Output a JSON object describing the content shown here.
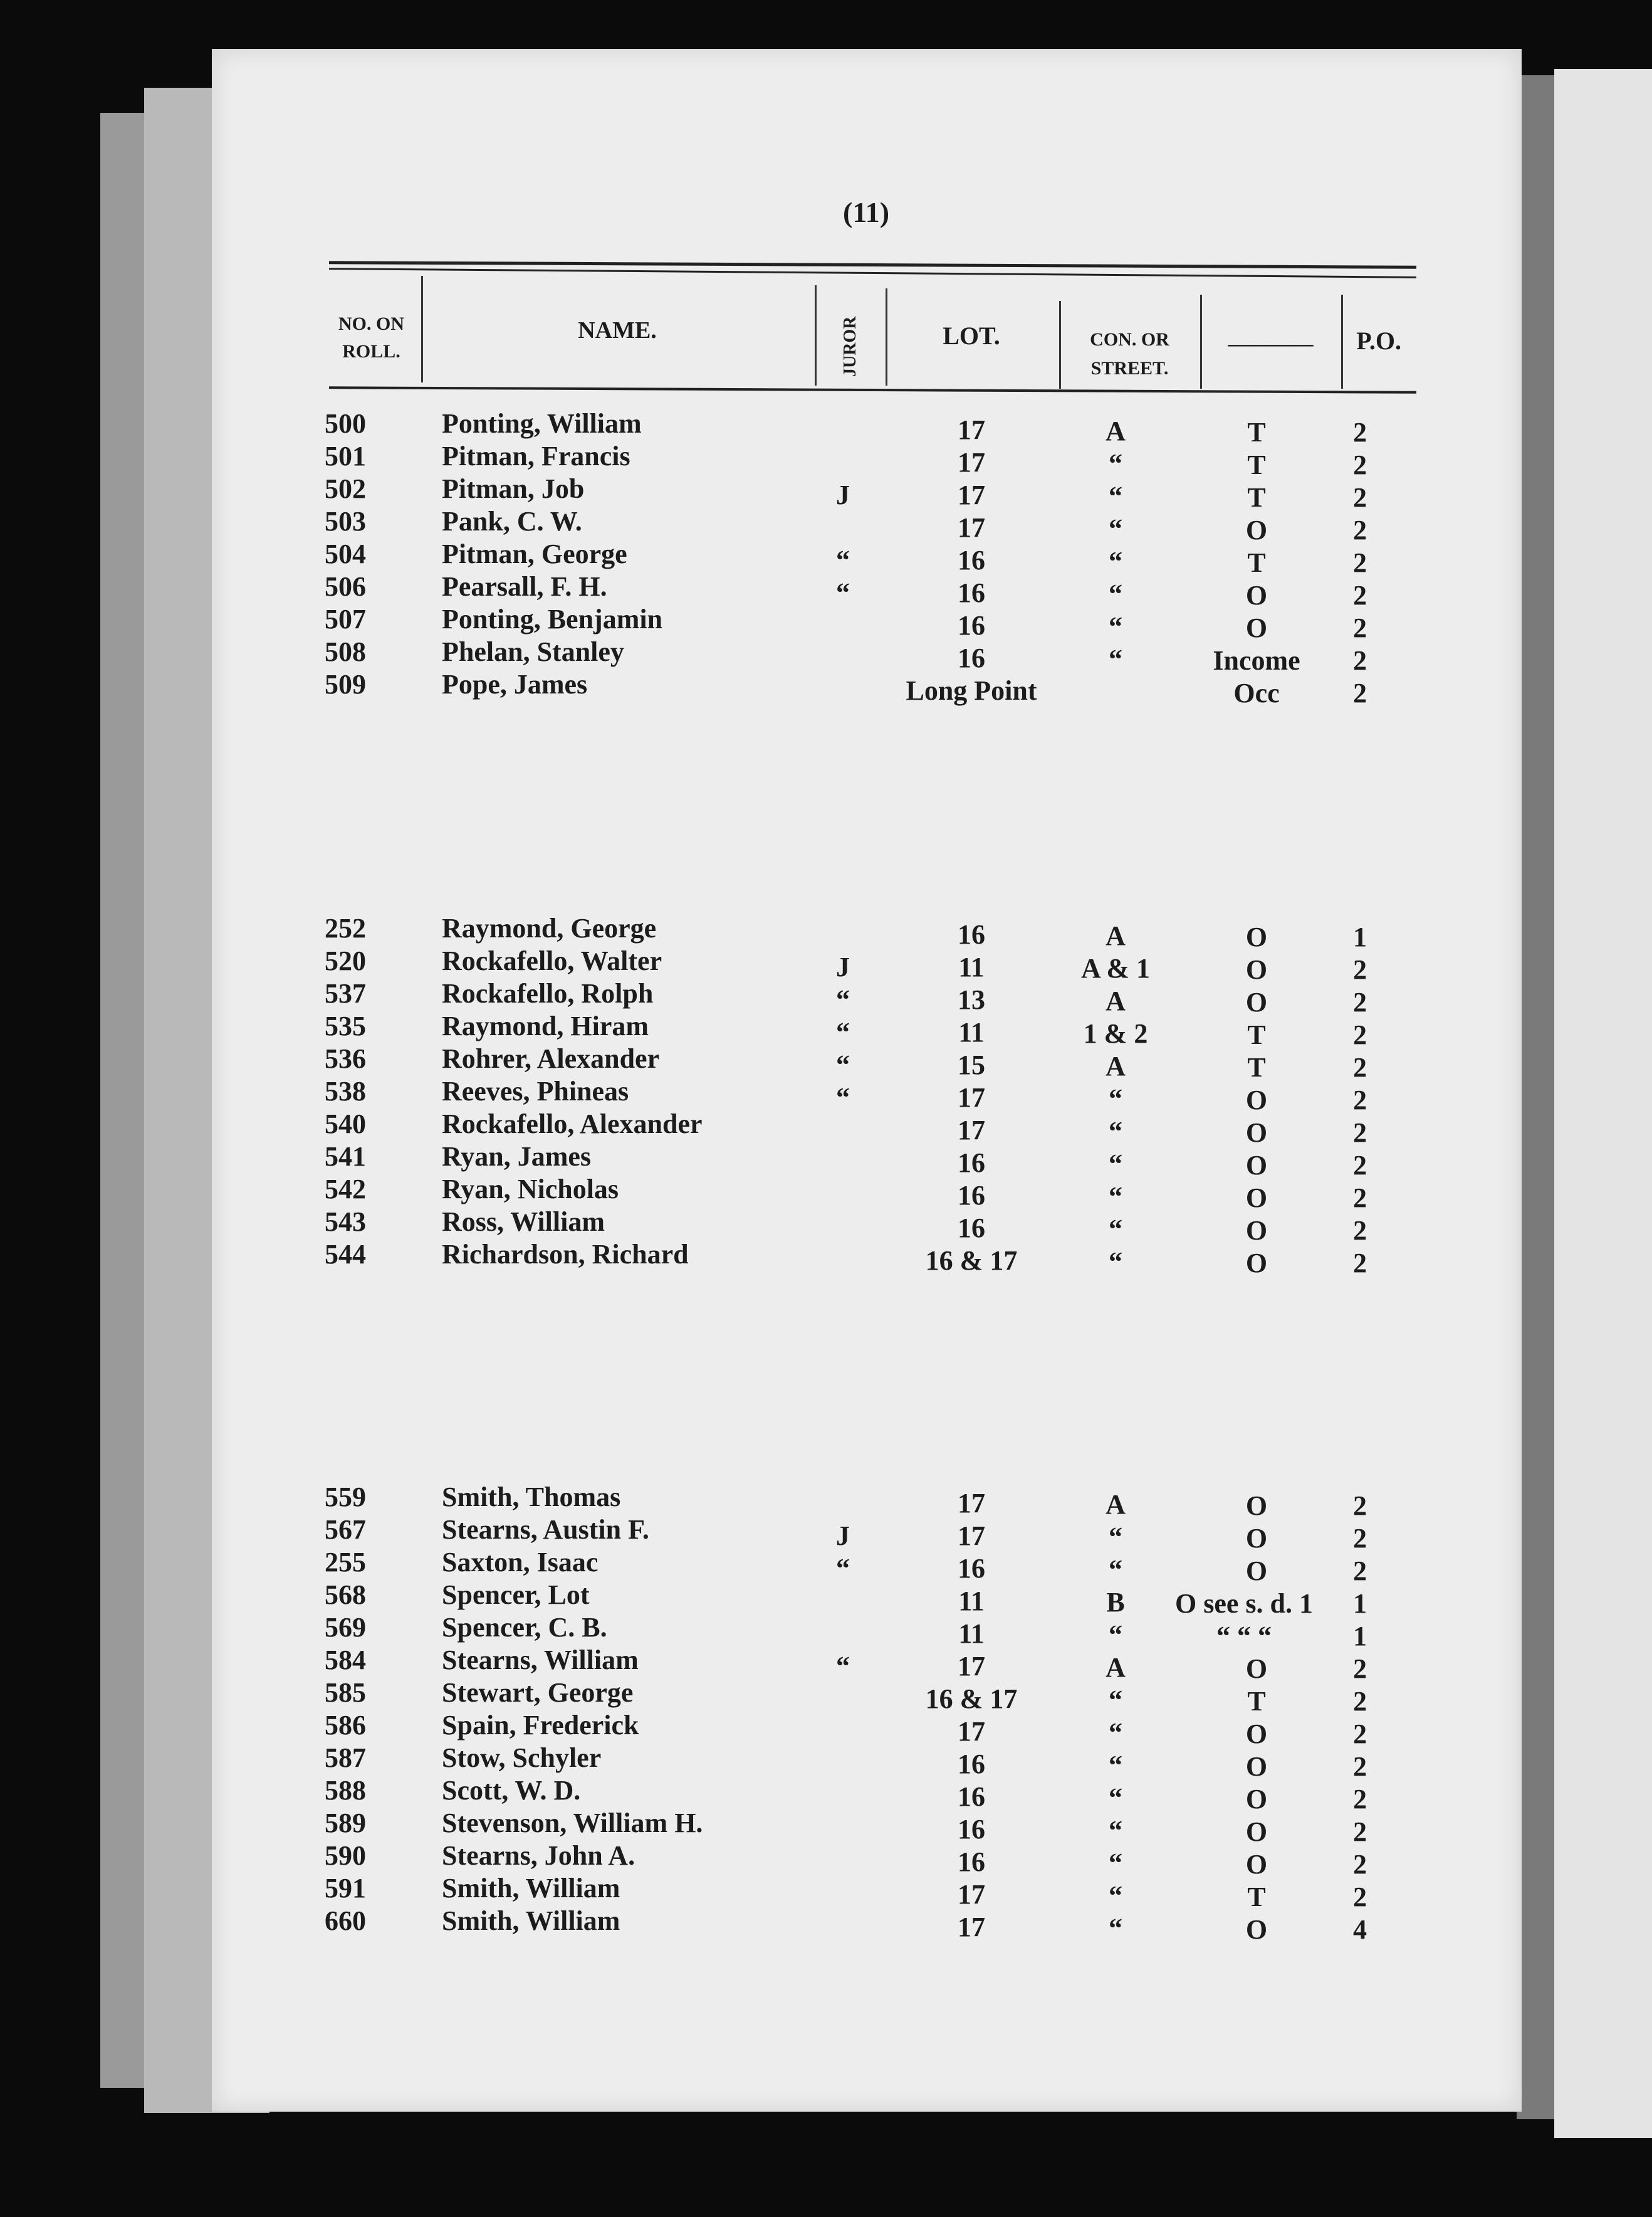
{
  "page_number": "(11)",
  "headers": {
    "no_on_roll_1": "NO. ON",
    "no_on_roll_2": "ROLL.",
    "name": "NAME.",
    "juror": "JUROR",
    "lot": "LOT.",
    "con_1": "CON. OR",
    "con_2": "STREET.",
    "blank": "————",
    "po": "P.O."
  },
  "sections": [
    {
      "rows": [
        {
          "no": "500",
          "name": "Ponting, William",
          "juror": "",
          "lot": "17",
          "con": "A",
          "col6": "T",
          "po": "2"
        },
        {
          "no": "501",
          "name": "Pitman, Francis",
          "juror": "",
          "lot": "17",
          "con": "“",
          "col6": "T",
          "po": "2"
        },
        {
          "no": "502",
          "name": "Pitman, Job",
          "juror": "J",
          "lot": "17",
          "con": "“",
          "col6": "T",
          "po": "2"
        },
        {
          "no": "503",
          "name": "Pank, C. W.",
          "juror": "",
          "lot": "17",
          "con": "“",
          "col6": "O",
          "po": "2"
        },
        {
          "no": "504",
          "name": "Pitman, George",
          "juror": "“",
          "lot": "16",
          "con": "“",
          "col6": "T",
          "po": "2"
        },
        {
          "no": "506",
          "name": "Pearsall, F. H.",
          "juror": "“",
          "lot": "16",
          "con": "“",
          "col6": "O",
          "po": "2"
        },
        {
          "no": "507",
          "name": "Ponting, Benjamin",
          "juror": "",
          "lot": "16",
          "con": "“",
          "col6": "O",
          "po": "2"
        },
        {
          "no": "508",
          "name": "Phelan, Stanley",
          "juror": "",
          "lot": "16",
          "con": "“",
          "col6": "Income",
          "po": "2"
        },
        {
          "no": "509",
          "name": "Pope, James",
          "juror": "",
          "lot": "Long Point",
          "con": "",
          "col6": "Occ",
          "po": "2"
        }
      ]
    },
    {
      "rows": [
        {
          "no": "252",
          "name": "Raymond, George",
          "juror": "",
          "lot": "16",
          "con": "A",
          "col6": "O",
          "po": "1"
        },
        {
          "no": "520",
          "name": "Rockafello, Walter",
          "juror": "J",
          "lot": "11",
          "con": "A & 1",
          "col6": "O",
          "po": "2"
        },
        {
          "no": "537",
          "name": "Rockafello, Rolph",
          "juror": "“",
          "lot": "13",
          "con": "A",
          "col6": "O",
          "po": "2"
        },
        {
          "no": "535",
          "name": "Raymond, Hiram",
          "juror": "“",
          "lot": "11",
          "con": "1 & 2",
          "col6": "T",
          "po": "2"
        },
        {
          "no": "536",
          "name": "Rohrer, Alexander",
          "juror": "“",
          "lot": "15",
          "con": "A",
          "col6": "T",
          "po": "2"
        },
        {
          "no": "538",
          "name": "Reeves, Phineas",
          "juror": "“",
          "lot": "17",
          "con": "“",
          "col6": "O",
          "po": "2"
        },
        {
          "no": "540",
          "name": "Rockafello, Alexander",
          "juror": "",
          "lot": "17",
          "con": "“",
          "col6": "O",
          "po": "2"
        },
        {
          "no": "541",
          "name": "Ryan, James",
          "juror": "",
          "lot": "16",
          "con": "“",
          "col6": "O",
          "po": "2"
        },
        {
          "no": "542",
          "name": "Ryan, Nicholas",
          "juror": "",
          "lot": "16",
          "con": "“",
          "col6": "O",
          "po": "2"
        },
        {
          "no": "543",
          "name": "Ross, William",
          "juror": "",
          "lot": "16",
          "con": "“",
          "col6": "O",
          "po": "2"
        },
        {
          "no": "544",
          "name": "Richardson, Richard",
          "juror": "",
          "lot": "16 & 17",
          "con": "“",
          "col6": "O",
          "po": "2"
        }
      ]
    },
    {
      "rows": [
        {
          "no": "559",
          "name": "Smith, Thomas",
          "juror": "",
          "lot": "17",
          "con": "A",
          "col6": "O",
          "po": "2"
        },
        {
          "no": "567",
          "name": "Stearns, Austin F.",
          "juror": "J",
          "lot": "17",
          "con": "“",
          "col6": "O",
          "po": "2"
        },
        {
          "no": "255",
          "name": "Saxton, Isaac",
          "juror": "“",
          "lot": "16",
          "con": "“",
          "col6": "O",
          "po": "2"
        },
        {
          "no": "568",
          "name": "Spencer, Lot",
          "juror": "",
          "lot": "11",
          "con": "B",
          "col6": "O see s. d. 1",
          "po": "1"
        },
        {
          "no": "569",
          "name": "Spencer, C. B.",
          "juror": "",
          "lot": "11",
          "con": "“",
          "col6": "“  “    “",
          "po": "1"
        },
        {
          "no": "584",
          "name": "Stearns, William",
          "juror": "“",
          "lot": "17",
          "con": "A",
          "col6": "O",
          "po": "2"
        },
        {
          "no": "585",
          "name": "Stewart, George",
          "juror": "",
          "lot": "16 & 17",
          "con": "“",
          "col6": "T",
          "po": "2"
        },
        {
          "no": "586",
          "name": "Spain, Frederick",
          "juror": "",
          "lot": "17",
          "con": "“",
          "col6": "O",
          "po": "2"
        },
        {
          "no": "587",
          "name": "Stow, Schyler",
          "juror": "",
          "lot": "16",
          "con": "“",
          "col6": "O",
          "po": "2"
        },
        {
          "no": "588",
          "name": "Scott, W. D.",
          "juror": "",
          "lot": "16",
          "con": "“",
          "col6": "O",
          "po": "2"
        },
        {
          "no": "589",
          "name": "Stevenson, William H.",
          "juror": "",
          "lot": "16",
          "con": "“",
          "col6": "O",
          "po": "2"
        },
        {
          "no": "590",
          "name": "Stearns, John A.",
          "juror": "",
          "lot": "16",
          "con": "“",
          "col6": "O",
          "po": "2"
        },
        {
          "no": "591",
          "name": "Smith, William",
          "juror": "",
          "lot": "17",
          "con": "“",
          "col6": "T",
          "po": "2"
        },
        {
          "no": "660",
          "name": "Smith, William",
          "juror": "",
          "lot": "17",
          "con": "“",
          "col6": "O",
          "po": "4"
        }
      ]
    }
  ]
}
